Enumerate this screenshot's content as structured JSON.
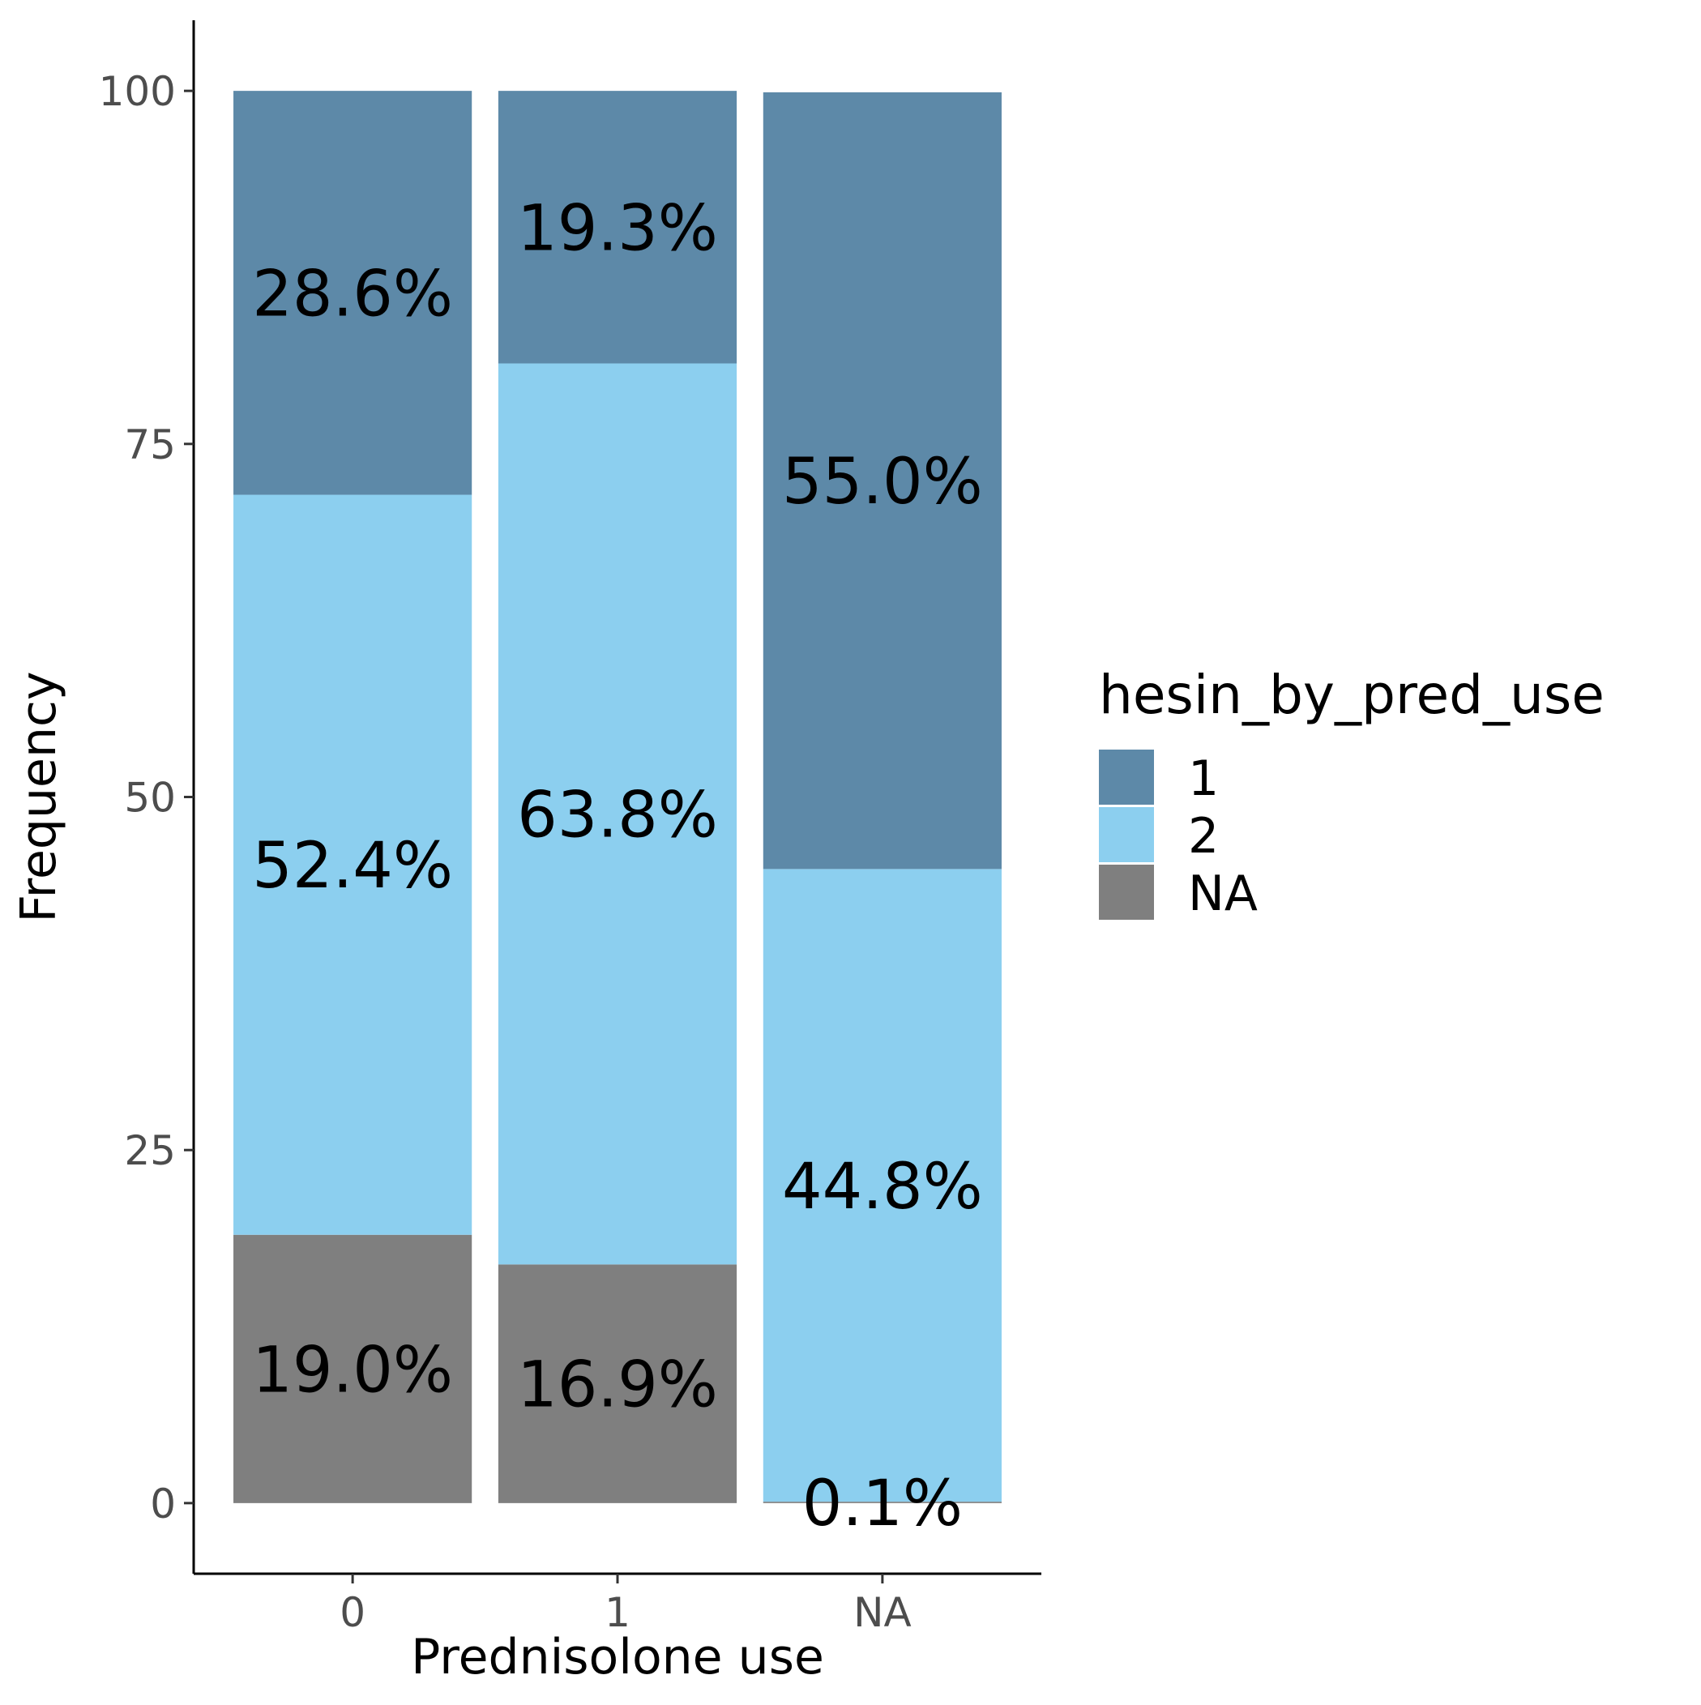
{
  "chart_data": {
    "type": "bar",
    "stacked": true,
    "xlabel": "Prednisolone use",
    "ylabel": "Frequency",
    "categories": [
      "0",
      "1",
      "NA"
    ],
    "ylim": [
      -5,
      105
    ],
    "yticks": [
      0,
      25,
      50,
      75,
      100
    ],
    "series": [
      {
        "name": "NA",
        "color": "#7f7f7f",
        "values": [
          19.0,
          16.9,
          0.1
        ],
        "labels": [
          "19.0%",
          "16.9%",
          "0.1%"
        ]
      },
      {
        "name": "2",
        "color": "#8ccfef",
        "values": [
          52.4,
          63.8,
          44.8
        ],
        "labels": [
          "52.4%",
          "63.8%",
          "44.8%"
        ]
      },
      {
        "name": "1",
        "color": "#5d89a8",
        "values": [
          28.6,
          19.3,
          55.0
        ],
        "labels": [
          "28.6%",
          "19.3%",
          "55.0%"
        ]
      }
    ],
    "legend": {
      "title": "hesin_by_pred_use",
      "position": "right",
      "entries": [
        {
          "label": "1",
          "color": "#5d89a8"
        },
        {
          "label": "2",
          "color": "#8ccfef"
        },
        {
          "label": "NA",
          "color": "#7f7f7f"
        }
      ]
    },
    "grid": false
  }
}
